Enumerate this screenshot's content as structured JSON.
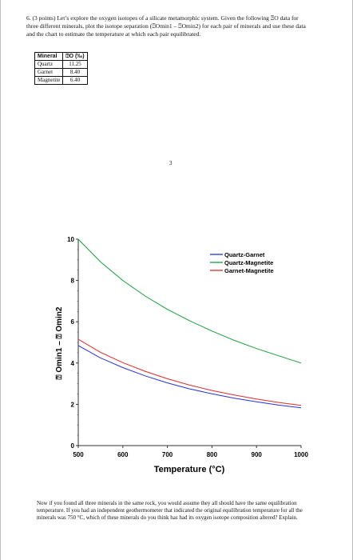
{
  "question": {
    "number": "6.",
    "points": "(3 points)",
    "text": "Let’s explore the oxygen isotopes of a silicate metamorphic system. Given the following ⍰O data for three different minerals, plot the isotope separation (⍰Omin1 – ⍰Omin2) for each pair of minerals and use these data and the chart to estimate the temperature at which each pair equilibrated."
  },
  "table": {
    "headers": [
      "Mineral",
      "⍰O (‰)"
    ],
    "rows": [
      [
        "Quartz",
        "11.25"
      ],
      [
        "Garnet",
        "8.40"
      ],
      [
        "Magnetite",
        "6.40"
      ]
    ]
  },
  "page_number": "3",
  "chart_data": {
    "type": "line",
    "xlabel": "Temperature (°C)",
    "ylabel": "⍰ Omin1 – ⍰ Omin2",
    "xlim": [
      500,
      1000
    ],
    "ylim": [
      0,
      10
    ],
    "xticks": [
      "500",
      "600",
      "700",
      "800",
      "900",
      "1000"
    ],
    "yticks": [
      "0",
      "2",
      "4",
      "6",
      "8",
      "10"
    ],
    "legend_position": "top-right",
    "x": [
      500,
      550,
      600,
      650,
      700,
      750,
      800,
      850,
      900,
      950,
      1000
    ],
    "series": [
      {
        "name": "Quartz-Garnet",
        "color": "#2433d6",
        "values": [
          4.85,
          4.25,
          3.78,
          3.38,
          3.04,
          2.75,
          2.51,
          2.3,
          2.12,
          1.96,
          1.83
        ]
      },
      {
        "name": "Quartz-Magnetite",
        "color": "#1a9c3a",
        "values": [
          10.0,
          8.9,
          8.0,
          7.25,
          6.6,
          6.05,
          5.55,
          5.1,
          4.7,
          4.35,
          4.0
        ]
      },
      {
        "name": "Garnet-Magnetite",
        "color": "#e02a2a",
        "values": [
          5.15,
          4.52,
          4.02,
          3.6,
          3.24,
          2.93,
          2.67,
          2.45,
          2.26,
          2.09,
          1.95
        ]
      }
    ]
  },
  "footer": {
    "text": "Now if you found all three minerals in the same rock, you would assume they all should have the same equilibration temperature. If you had an independent geothermometer that indicated the original equilibration temperature for all the minerals was 750 °C, which of these minerals do you think has had its oxygen isotope composition altered? Explain."
  }
}
